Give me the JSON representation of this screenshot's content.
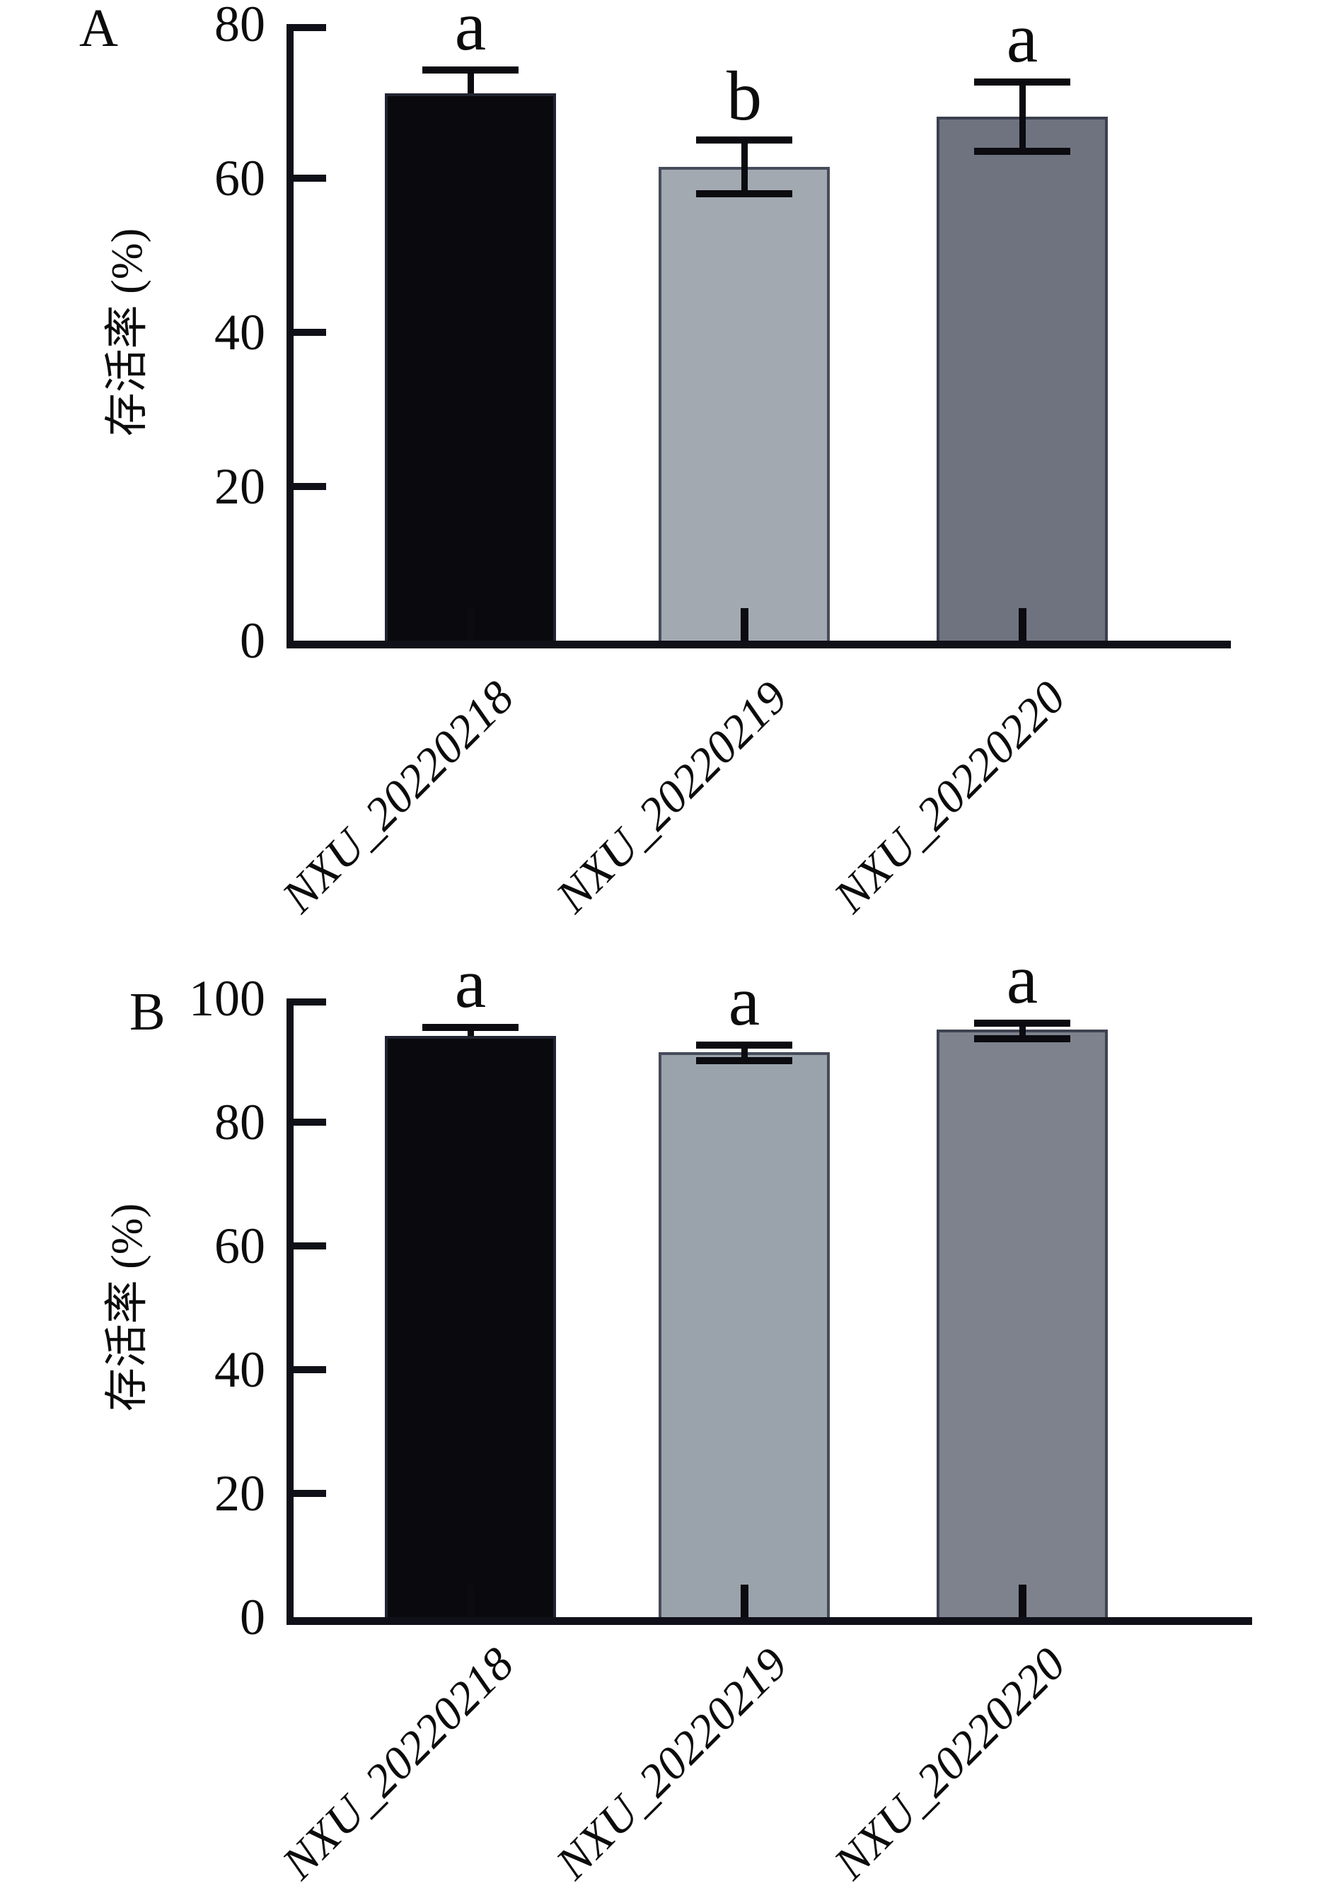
{
  "figure": {
    "background": "#ffffff",
    "axis_color": "#101018",
    "error_bar_color": "#0b0b10",
    "text_color": "#0c0c0c"
  },
  "chart_data": [
    {
      "panel": "A",
      "type": "bar",
      "title": "",
      "xlabel": "",
      "ylabel": "存活率 (%)",
      "categories": [
        "NXU_20220218",
        "NXU_20220219",
        "NXU_20220220"
      ],
      "values": [
        71,
        61.5,
        68
      ],
      "error_upper": [
        74,
        65,
        72.5
      ],
      "error_lower": [
        null,
        58,
        63.5
      ],
      "sig_letters": [
        "a",
        "b",
        "a"
      ],
      "ylim": [
        0,
        80
      ],
      "yticks": [
        0,
        20,
        40,
        60,
        80
      ],
      "grid": false,
      "legend": "none",
      "bar_colors": [
        "#0a0a0e",
        "#a2a9b1",
        "#6f7380"
      ]
    },
    {
      "panel": "B",
      "type": "bar",
      "title": "",
      "xlabel": "",
      "ylabel": "存活率 (%)",
      "categories": [
        "NXU_20220218",
        "NXU_20220219",
        "NXU_20220220"
      ],
      "values": [
        94,
        91.3,
        95
      ],
      "error_upper": [
        95.3,
        92.5,
        96
      ],
      "error_lower": [
        null,
        90,
        93.5
      ],
      "sig_letters": [
        "a",
        "a",
        "a"
      ],
      "ylim": [
        0,
        100
      ],
      "yticks": [
        0,
        20,
        40,
        60,
        80,
        100
      ],
      "grid": false,
      "legend": "none",
      "bar_colors": [
        "#0a0a0e",
        "#9aa3ab",
        "#7d828d"
      ]
    }
  ]
}
